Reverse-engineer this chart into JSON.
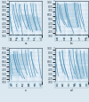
{
  "figure_bg": "#dce8f0",
  "plot_bg": "#eef5fa",
  "subplot_labels": [
    "a",
    "b",
    "c",
    "d"
  ],
  "grid_color": "#aac8dc",
  "grid_color_minor": "#c8dcea",
  "curve_color": "#4a90b8",
  "fill_color": "#a8cce0",
  "fill_alpha": 0.55,
  "axis_color": "#334455",
  "border_color": "#334455",
  "ylim": [
    100,
    900
  ],
  "ytick_vals": [
    100,
    200,
    300,
    400,
    500,
    600,
    700,
    800,
    900
  ],
  "ytick_labels": [
    "100",
    "200",
    "300",
    "400",
    "500",
    "600",
    "700",
    "800",
    "900"
  ],
  "xtick_vals": [
    1,
    10,
    100,
    1000
  ],
  "xtick_labels": [
    "1",
    "10",
    "100",
    "1000"
  ],
  "legend_bg": "#e0ecf4",
  "legend_border": "#88aabb",
  "text_color": "#222222",
  "title_fontsize": 3.0,
  "tick_fontsize": 2.2,
  "legend_fontsize": 1.8,
  "curve_lw": 0.5,
  "grid_lw": 0.25,
  "spine_lw": 0.4
}
